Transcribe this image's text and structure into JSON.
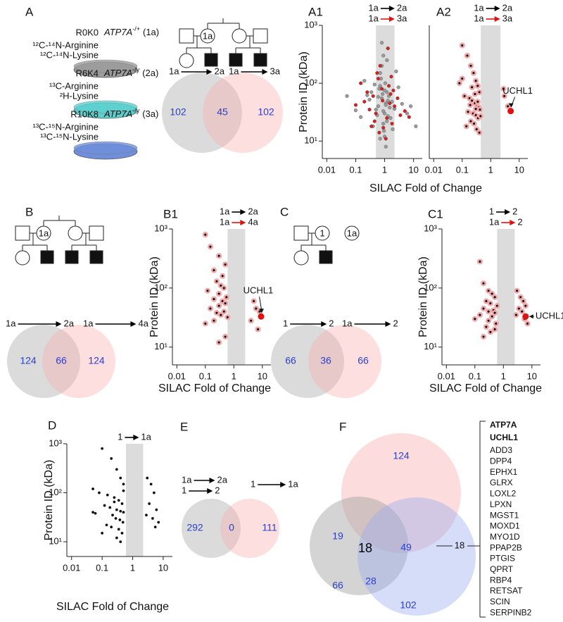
{
  "panel_labels": {
    "a": "A",
    "b": "B",
    "c": "C",
    "e": "E",
    "f": "F"
  },
  "media": [
    {
      "code": "R0K0",
      "gene": "ATP7A",
      "genotype": "-/+",
      "sample": "(1a)",
      "labels": [
        "¹²C-¹⁴N-Arginine",
        "¹²C-¹⁴N-Lysine"
      ],
      "color": "#9c9c9c"
    },
    {
      "code": "R6K4",
      "gene": "ATP7A",
      "genotype": "-/y",
      "sample": "(2a)",
      "labels": [
        "¹³C-Arginine",
        "²H-Lysine"
      ],
      "color": "#5fd0d0"
    },
    {
      "code": "R10K8",
      "gene": "ATP7A",
      "genotype": "-/y",
      "sample": "(3a)",
      "labels": [
        "¹³C-¹⁵N-Arginine",
        "¹³C-¹⁵N-Lysine"
      ],
      "color": "#6f8fda"
    }
  ],
  "pedigree_a": [
    "1a",
    "2a",
    "3a"
  ],
  "pedigree_b": [
    "1a",
    "2a",
    "4a"
  ],
  "pedigree_c": [
    "1",
    "2",
    "1a"
  ],
  "venn_a": {
    "comparisons": [
      {
        "from": "1a",
        "to": "2a"
      },
      {
        "from": "1a",
        "to": "3a"
      }
    ],
    "counts": [
      102,
      45,
      102
    ]
  },
  "venn_b": {
    "comparisons": [
      {
        "from": "1a",
        "to": "2a"
      },
      {
        "from": "1a",
        "to": "4a"
      }
    ],
    "counts": [
      124,
      66,
      124
    ]
  },
  "venn_c": {
    "comparisons": [
      {
        "from": "1",
        "to": "2"
      },
      {
        "from": "1a",
        "to": "2"
      }
    ],
    "counts": [
      66,
      36,
      66
    ]
  },
  "venn_e": {
    "comparisons": [
      {
        "from": "1a",
        "to": "2a"
      },
      {
        "from": "1",
        "to": "2"
      },
      {
        "from": "1",
        "to": "1a"
      }
    ],
    "counts": [
      292,
      0,
      111
    ]
  },
  "venn_f": {
    "counts": [
      124,
      19,
      18,
      49,
      66,
      28,
      102
    ],
    "overlap": 18,
    "genes": [
      "ATP7A",
      "UCHL1",
      "ADD3",
      "DPP4",
      "EPHX1",
      "GLRX",
      "LOXL2",
      "LPXN",
      "MGST1",
      "MOXD1",
      "MYO1D",
      "PPAP2B",
      "PTGIS",
      "QPRT",
      "RBP4",
      "RETSAT",
      "SCIN",
      "SERPINB2"
    ]
  },
  "chart_data": [
    {
      "type": "scatter",
      "panel": "A1",
      "ylabel": "Protein ID (kDa)",
      "xlabel": "SILAC Fold of Change",
      "xscale": "log",
      "yscale": "log",
      "xlim": [
        0.007,
        20
      ],
      "ylim": [
        5,
        1000
      ],
      "xticks": [
        0.01,
        0.1,
        1,
        10
      ],
      "yticks": [
        {
          "value": 10,
          "label": "10¹"
        },
        {
          "value": 100,
          "label": "10²"
        },
        {
          "value": 1000,
          "label": "10³"
        }
      ],
      "shade": [
        0.5,
        2.2
      ],
      "comparisons": [
        {
          "from": "1a",
          "to": "2a",
          "color": "#000000"
        },
        {
          "from": "1a",
          "to": "3a",
          "color": "#e01010"
        }
      ],
      "series": [
        {
          "color": "#9a9a9a",
          "x": [
            0.6,
            0.8,
            1.0,
            1.2,
            0.7,
            0.9,
            1.1,
            1.4,
            0.5,
            1.6,
            0.75,
            0.95,
            1.3,
            0.65,
            1.05,
            0.85,
            1.5,
            0.55,
            1.8,
            0.7,
            1.2,
            0.9,
            1.0,
            0.8,
            1.1,
            0.6,
            1.3,
            2.2,
            0.4,
            3,
            0.3,
            4,
            0.2,
            6,
            0.15,
            0.35,
            2.5,
            0.45,
            1.9,
            0.25,
            8,
            0.1,
            0.05,
            12,
            0.9,
            1.0,
            0.8,
            1.2,
            0.7,
            1.1
          ],
          "values": [
            40,
            55,
            30,
            70,
            90,
            20,
            45,
            60,
            35,
            25,
            120,
            15,
            50,
            80,
            100,
            65,
            38,
            28,
            48,
            150,
            22,
            33,
            75,
            200,
            42,
            58,
            27,
            36,
            18,
            85,
            52,
            44,
            110,
            30,
            26,
            70,
            160,
            95,
            16,
            62,
            40,
            34,
            60,
            18,
            300,
            12,
            500,
            250,
            11,
            8
          ]
        },
        {
          "color": "#d42020",
          "x": [
            0.5,
            1.5,
            0.8,
            1.2,
            0.4,
            2.2,
            0.6,
            1.8,
            0.3,
            2.8,
            0.9,
            0.7,
            1.4,
            0.25,
            3.5,
            1.1,
            0.55,
            1.6,
            0.2,
            0.45,
            5,
            0.15,
            0.65,
            1.3,
            2,
            0.35,
            0.85,
            1.7,
            0.1,
            7
          ],
          "values": [
            30,
            45,
            80,
            25,
            60,
            40,
            120,
            20,
            35,
            55,
            17,
            200,
            90,
            70,
            28,
            11,
            150,
            65,
            48,
            22,
            33,
            100,
            14,
            400,
            75,
            18,
            50,
            130,
            42,
            26
          ]
        }
      ]
    },
    {
      "type": "scatter",
      "panel": "A2",
      "xscale": "log",
      "yscale": "log",
      "xlim": [
        0.007,
        20
      ],
      "ylim": [
        5,
        1000
      ],
      "xticks": [
        0.01,
        0.1,
        1,
        10
      ],
      "shade": [
        0.45,
        2.2
      ],
      "comparisons": [
        {
          "from": "1a",
          "to": "2a",
          "color": "#000000"
        },
        {
          "from": "1a",
          "to": "3a",
          "color": "#e01010"
        }
      ],
      "annotation": {
        "text": "UCHL1",
        "x": 5,
        "y": 33,
        "color": "#e01010"
      },
      "series": [
        {
          "color": "#000000",
          "edgecolor": "#f2a8a8",
          "x": [
            0.1,
            0.15,
            0.2,
            0.25,
            0.3,
            0.35,
            0.4,
            0.12,
            0.18,
            0.22,
            0.28,
            0.33,
            0.38,
            0.42,
            0.16,
            0.24,
            0.3,
            0.36,
            0.2,
            0.26,
            0.14,
            0.32,
            0.4,
            0.1,
            0.22,
            0.28,
            0.35,
            0.19,
            0.3,
            0.44,
            0.08,
            3,
            4,
            2.8
          ],
          "values": [
            450,
            300,
            200,
            150,
            110,
            90,
            70,
            60,
            55,
            50,
            45,
            40,
            38,
            35,
            32,
            30,
            28,
            25,
            22,
            20,
            18,
            16,
            14,
            120,
            85,
            65,
            48,
            42,
            36,
            27,
            100,
            60,
            40,
            80
          ]
        }
      ]
    },
    {
      "type": "scatter",
      "panel": "B1",
      "ylabel": "Protein ID (kDa)",
      "xlabel": "SILAC Fold of Change",
      "xscale": "log",
      "yscale": "log",
      "xlim": [
        0.007,
        20
      ],
      "ylim": [
        5,
        1000
      ],
      "xticks": [
        0.01,
        0.1,
        1,
        10
      ],
      "yticks": [
        {
          "value": 10,
          "label": "10¹"
        },
        {
          "value": 100,
          "label": "10²"
        },
        {
          "value": 1000,
          "label": "10³"
        }
      ],
      "shade": [
        0.6,
        2.5
      ],
      "comparisons": [
        {
          "from": "1a",
          "to": "2a",
          "color": "#000000"
        },
        {
          "from": "1a",
          "to": "4a",
          "color": "#e01010"
        }
      ],
      "annotation": {
        "text": "UCHL1",
        "x": 9,
        "y": 33,
        "color": "#e01010"
      },
      "series": [
        {
          "color": "#000000",
          "edgecolor": "#f2a8a8",
          "x": [
            0.1,
            0.15,
            0.3,
            0.5,
            0.2,
            0.4,
            0.25,
            0.35,
            0.45,
            0.12,
            0.3,
            0.55,
            0.2,
            0.4,
            0.5,
            0.3,
            0.15,
            0.45,
            0.25,
            0.35,
            0.6,
            0.2,
            0.1,
            5,
            6,
            8,
            4,
            7,
            0.5,
            0.3
          ],
          "values": [
            800,
            500,
            350,
            250,
            200,
            160,
            130,
            110,
            100,
            90,
            80,
            70,
            65,
            60,
            55,
            50,
            45,
            40,
            38,
            35,
            32,
            28,
            25,
            60,
            45,
            40,
            28,
            20,
            15,
            12
          ]
        }
      ]
    },
    {
      "type": "scatter",
      "panel": "C1",
      "ylabel": "Protein ID (kDa)",
      "xlabel": "SILAC Fold of Change",
      "xscale": "log",
      "yscale": "log",
      "xlim": [
        0.007,
        20
      ],
      "ylim": [
        5,
        1000
      ],
      "xticks": [
        0.01,
        0.1,
        1,
        10
      ],
      "yticks": [
        {
          "value": 10,
          "label": "10¹"
        },
        {
          "value": 100,
          "label": "10²"
        },
        {
          "value": 1000,
          "label": "10³"
        }
      ],
      "shade": [
        0.6,
        2.5
      ],
      "comparisons": [
        {
          "from": "1",
          "to": "2",
          "color": "#000000"
        },
        {
          "from": "1a",
          "to": "2",
          "color": "#e01010"
        }
      ],
      "annotation": {
        "text": "UCHL1",
        "x": 6,
        "y": 33,
        "color": "#e01010"
      },
      "series": [
        {
          "color": "#000000",
          "edgecolor": "#f2a8a8",
          "x": [
            0.15,
            0.2,
            0.3,
            0.4,
            0.5,
            0.25,
            0.35,
            0.6,
            0.2,
            0.45,
            0.3,
            0.5,
            0.15,
            0.4,
            0.1,
            0.3,
            0.55,
            0.25,
            0.5,
            0.35,
            3,
            4,
            5,
            6,
            3.5,
            4.5,
            2.8,
            5.5,
            7,
            0.2
          ],
          "values": [
            280,
            120,
            90,
            80,
            70,
            60,
            55,
            50,
            45,
            42,
            40,
            38,
            35,
            33,
            30,
            28,
            25,
            22,
            20,
            18,
            90,
            70,
            60,
            50,
            45,
            40,
            35,
            30,
            25,
            15
          ]
        }
      ]
    },
    {
      "type": "scatter",
      "panel": "D",
      "ylabel": "Protein ID (kDa)",
      "xlabel": "SILAC Fold of Change",
      "xscale": "log",
      "yscale": "log",
      "xlim": [
        0.007,
        20
      ],
      "ylim": [
        5,
        1000
      ],
      "xticks": [
        0.01,
        0.1,
        1,
        10
      ],
      "yticks": [
        {
          "value": 10,
          "label": "10¹"
        },
        {
          "value": 100,
          "label": "10²"
        },
        {
          "value": 1000,
          "label": "10³"
        }
      ],
      "shade": [
        0.6,
        2.2
      ],
      "comparisons": [
        {
          "from": "1",
          "to": "1a",
          "color": "#000000"
        }
      ],
      "series": [
        {
          "color": "#000000",
          "x": [
            0.1,
            0.2,
            0.3,
            0.4,
            0.5,
            0.05,
            0.08,
            0.15,
            0.25,
            0.35,
            0.45,
            0.12,
            0.18,
            0.3,
            0.4,
            0.5,
            0.06,
            0.22,
            0.28,
            0.38,
            0.48,
            0.14,
            0.2,
            0.35,
            0.45,
            3,
            4,
            5,
            3.5,
            6,
            2.8,
            4.5,
            7,
            5.5,
            0.1,
            0.3,
            0.05,
            0.4,
            0.25,
            0.5
          ],
          "values": [
            800,
            500,
            300,
            200,
            150,
            120,
            100,
            90,
            80,
            70,
            60,
            55,
            50,
            45,
            42,
            40,
            38,
            35,
            30,
            28,
            25,
            22,
            20,
            18,
            15,
            200,
            150,
            100,
            60,
            45,
            35,
            30,
            25,
            20,
            15,
            12,
            40,
            10,
            65,
            110
          ]
        }
      ]
    }
  ]
}
